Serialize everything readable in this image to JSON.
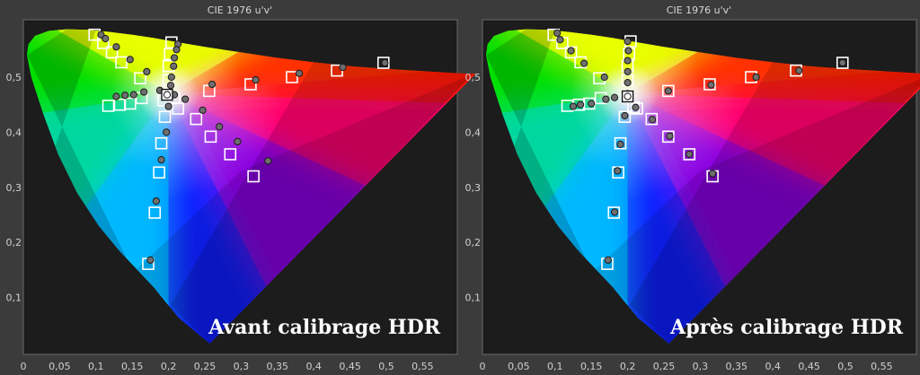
{
  "chart_data": [
    {
      "type": "scatter",
      "title": "CIE 1976 u'v'",
      "caption": "Avant calibrage HDR",
      "xlim": [
        0,
        0.6
      ],
      "ylim": [
        0,
        0.6
      ],
      "x_ticks": [
        "0",
        "0,05",
        "0,1",
        "0,15",
        "0,2",
        "0,25",
        "0,3",
        "0,35",
        "0,4",
        "0,45",
        "0,5",
        "0,55"
      ],
      "y_ticks": [
        "0,1",
        "0,2",
        "0,3",
        "0,4",
        "0,5"
      ],
      "grid": false,
      "series": [
        {
          "marker": "square",
          "points": [
            [
              0.098,
              0.577
            ],
            [
              0.11,
              0.562
            ],
            [
              0.122,
              0.545
            ],
            [
              0.135,
              0.527
            ],
            [
              0.161,
              0.498
            ],
            [
              0.204,
              0.563
            ],
            [
              0.202,
              0.542
            ],
            [
              0.2,
              0.52
            ],
            [
              0.2,
              0.495
            ],
            [
              0.208,
              0.462
            ],
            [
              0.213,
              0.443
            ],
            [
              0.238,
              0.424
            ],
            [
              0.258,
              0.392
            ],
            [
              0.285,
              0.36
            ],
            [
              0.317,
              0.32
            ],
            [
              0.193,
              0.458
            ],
            [
              0.195,
              0.428
            ],
            [
              0.19,
              0.38
            ],
            [
              0.187,
              0.327
            ],
            [
              0.181,
              0.254
            ],
            [
              0.172,
              0.161
            ],
            [
              0.117,
              0.448
            ],
            [
              0.133,
              0.45
            ],
            [
              0.147,
              0.452
            ],
            [
              0.163,
              0.462
            ],
            [
              0.256,
              0.475
            ],
            [
              0.313,
              0.487
            ],
            [
              0.37,
              0.5
            ],
            [
              0.432,
              0.512
            ],
            [
              0.496,
              0.526
            ]
          ]
        },
        {
          "marker": "circle",
          "points": [
            [
              0.107,
              0.577
            ],
            [
              0.113,
              0.57
            ],
            [
              0.128,
              0.555
            ],
            [
              0.147,
              0.532
            ],
            [
              0.17,
              0.51
            ],
            [
              0.213,
              0.56
            ],
            [
              0.211,
              0.55
            ],
            [
              0.208,
              0.535
            ],
            [
              0.207,
              0.52
            ],
            [
              0.204,
              0.5
            ],
            [
              0.203,
              0.485
            ],
            [
              0.208,
              0.468
            ],
            [
              0.223,
              0.46
            ],
            [
              0.247,
              0.44
            ],
            [
              0.27,
              0.41
            ],
            [
              0.295,
              0.383
            ],
            [
              0.337,
              0.348
            ],
            [
              0.2,
              0.447
            ],
            [
              0.197,
              0.4
            ],
            [
              0.19,
              0.35
            ],
            [
              0.183,
              0.275
            ],
            [
              0.175,
              0.168
            ],
            [
              0.128,
              0.465
            ],
            [
              0.14,
              0.467
            ],
            [
              0.152,
              0.468
            ],
            [
              0.166,
              0.473
            ],
            [
              0.188,
              0.476
            ],
            [
              0.26,
              0.487
            ],
            [
              0.32,
              0.495
            ],
            [
              0.38,
              0.507
            ],
            [
              0.44,
              0.518
            ],
            [
              0.498,
              0.526
            ]
          ]
        },
        {
          "marker": "white-point",
          "points": [
            [
              0.198,
              0.468
            ]
          ]
        }
      ]
    },
    {
      "type": "scatter",
      "title": "CIE 1976 u'v'",
      "caption": "Après calibrage HDR",
      "xlim": [
        0,
        0.6
      ],
      "ylim": [
        0,
        0.6
      ],
      "x_ticks": [
        "0",
        "0,05",
        "0,1",
        "0,15",
        "0,2",
        "0,25",
        "0,3",
        "0,35",
        "0,4",
        "0,45",
        "0,5",
        "0,55"
      ],
      "y_ticks": [
        "0,1",
        "0,2",
        "0,3",
        "0,4",
        "0,5"
      ],
      "grid": false,
      "series": [
        {
          "marker": "square",
          "points": [
            [
              0.098,
              0.577
            ],
            [
              0.11,
              0.562
            ],
            [
              0.122,
              0.545
            ],
            [
              0.135,
              0.527
            ],
            [
              0.161,
              0.498
            ],
            [
              0.204,
              0.565
            ],
            [
              0.202,
              0.542
            ],
            [
              0.2,
              0.52
            ],
            [
              0.2,
              0.495
            ],
            [
              0.208,
              0.445
            ],
            [
              0.213,
              0.443
            ],
            [
              0.233,
              0.424
            ],
            [
              0.256,
              0.392
            ],
            [
              0.285,
              0.36
            ],
            [
              0.317,
              0.32
            ],
            [
              0.2,
              0.465
            ],
            [
              0.196,
              0.428
            ],
            [
              0.19,
              0.38
            ],
            [
              0.187,
              0.327
            ],
            [
              0.181,
              0.254
            ],
            [
              0.172,
              0.161
            ],
            [
              0.117,
              0.448
            ],
            [
              0.133,
              0.45
            ],
            [
              0.147,
              0.452
            ],
            [
              0.163,
              0.462
            ],
            [
              0.256,
              0.475
            ],
            [
              0.313,
              0.487
            ],
            [
              0.37,
              0.5
            ],
            [
              0.432,
              0.512
            ],
            [
              0.496,
              0.526
            ]
          ]
        },
        {
          "marker": "circle",
          "points": [
            [
              0.103,
              0.58
            ],
            [
              0.107,
              0.568
            ],
            [
              0.122,
              0.548
            ],
            [
              0.14,
              0.525
            ],
            [
              0.168,
              0.5
            ],
            [
              0.2,
              0.565
            ],
            [
              0.201,
              0.548
            ],
            [
              0.2,
              0.53
            ],
            [
              0.2,
              0.51
            ],
            [
              0.2,
              0.49
            ],
            [
              0.2,
              0.47
            ],
            [
              0.211,
              0.445
            ],
            [
              0.234,
              0.423
            ],
            [
              0.258,
              0.393
            ],
            [
              0.285,
              0.36
            ],
            [
              0.317,
              0.325
            ],
            [
              0.196,
              0.43
            ],
            [
              0.19,
              0.378
            ],
            [
              0.186,
              0.33
            ],
            [
              0.182,
              0.255
            ],
            [
              0.173,
              0.168
            ],
            [
              0.125,
              0.447
            ],
            [
              0.135,
              0.45
            ],
            [
              0.15,
              0.452
            ],
            [
              0.17,
              0.46
            ],
            [
              0.182,
              0.463
            ],
            [
              0.256,
              0.475
            ],
            [
              0.315,
              0.486
            ],
            [
              0.377,
              0.5
            ],
            [
              0.436,
              0.512
            ],
            [
              0.496,
              0.526
            ]
          ]
        },
        {
          "marker": "white-point",
          "points": [
            [
              0.2,
              0.465
            ]
          ]
        }
      ]
    }
  ],
  "colors": {
    "background": "#3b3b3b",
    "plot_background": "#1c1c1c",
    "frame": "#6a6a6a",
    "marker_square": "#ffffff",
    "marker_circle_fill": "#6f6f6f",
    "marker_circle_stroke": "#1a1a1a"
  }
}
